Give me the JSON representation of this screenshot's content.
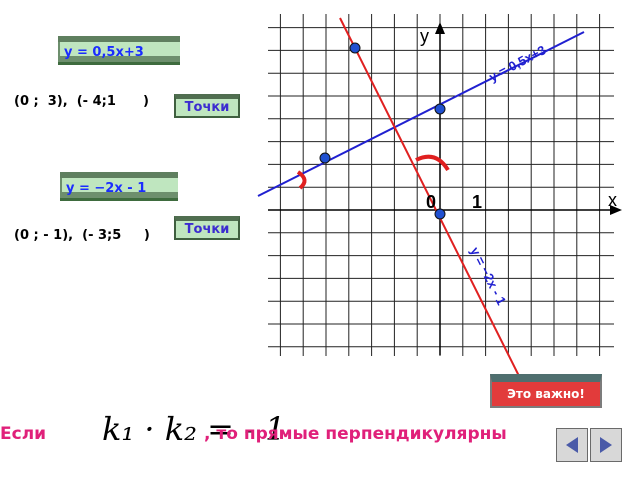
{
  "line1": {
    "box_label": "y =  0,5x+3",
    "points_text": "(0 ;  3),  (- 4;1      )",
    "graph_label": "y = 0,5x+3",
    "color": "#2020d0"
  },
  "line2": {
    "box_label": "y = −2x - 1",
    "points_text": "(0 ; - 1),  (- 3;5     )",
    "graph_label": "y = −2x - 1",
    "color": "#e02020"
  },
  "buttons": {
    "points1": "Точки",
    "points2": "Точки",
    "important": "Это важно!"
  },
  "axes": {
    "y": "y",
    "x": "x",
    "origin": "0",
    "one": "1"
  },
  "bottom": {
    "if": "Если",
    "formula": "k₁ · k₂ = - 1",
    "then": ", то прямые перпендикулярны"
  },
  "colors": {
    "box_bg": "#bfe6bf",
    "important_bg": "#e23b3b",
    "pink_text": "#e0207a",
    "grid": "#222222"
  }
}
